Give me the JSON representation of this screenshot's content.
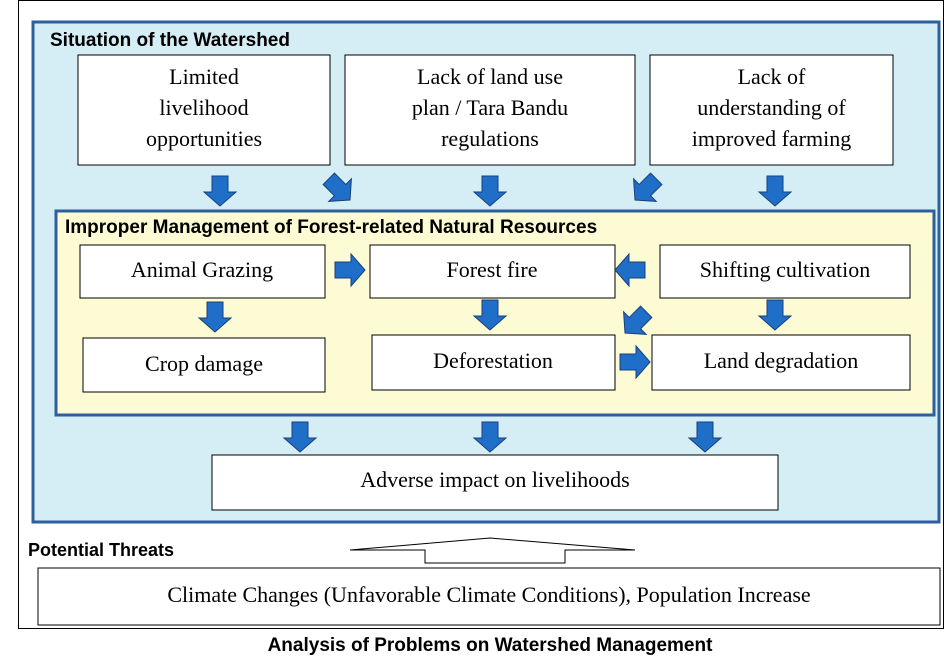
{
  "situation": {
    "title": "Situation of the Watershed",
    "causes": [
      {
        "lines": [
          "Limited",
          "livelihood",
          "opportunities"
        ]
      },
      {
        "lines": [
          "Lack of land use",
          "plan / Tara Bandu",
          "regulations"
        ]
      },
      {
        "lines": [
          "Lack of",
          "understanding of",
          "improved farming"
        ]
      }
    ]
  },
  "management": {
    "title": "Improper Management of Forest-related Natural Resources",
    "nodes": [
      {
        "label": "Animal Grazing"
      },
      {
        "label": "Forest fire"
      },
      {
        "label": "Shifting cultivation"
      },
      {
        "label": "Crop damage"
      },
      {
        "label": "Deforestation"
      },
      {
        "label": "Land degradation"
      }
    ]
  },
  "impact": {
    "label": "Adverse impact on livelihoods"
  },
  "threats": {
    "title": "Potential Threats",
    "label": "Climate Changes (Unfavorable Climate Conditions), Population Increase"
  },
  "caption": "Analysis of Problems on Watershed Management"
}
